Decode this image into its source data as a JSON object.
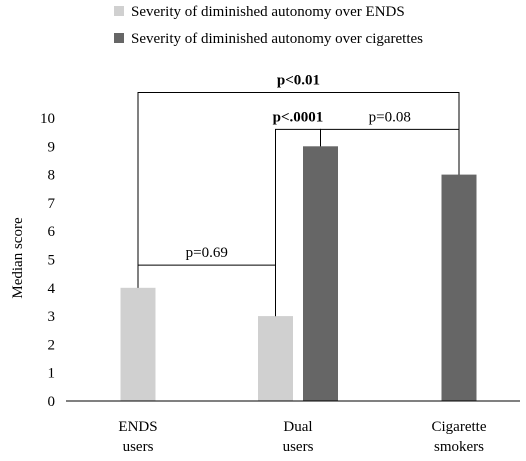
{
  "chart_data": {
    "type": "bar",
    "ylabel": "Median score",
    "ylim": [
      0,
      10
    ],
    "yticks": [
      "0",
      "1",
      "2",
      "3",
      "4",
      "5",
      "6",
      "7",
      "8",
      "9",
      "10"
    ],
    "categories": [
      {
        "line1": "ENDS",
        "line2": "users"
      },
      {
        "line1": "Dual",
        "line2": "users"
      },
      {
        "line1": "Cigarette",
        "line2": "smokers"
      }
    ],
    "series": [
      {
        "name": "Severity of diminished autonomy over ENDS",
        "color": "#d0d0d0",
        "values": [
          4,
          3,
          null
        ]
      },
      {
        "name": "Severity of diminished autonomy over cigarettes",
        "color": "#666666",
        "values": [
          null,
          9,
          8
        ]
      }
    ],
    "legend_position": "top",
    "grid": false,
    "annotations": [
      {
        "label": "p=0.69",
        "bold": false,
        "from": {
          "category": 0,
          "series": 0
        },
        "to": {
          "category": 1,
          "series": 0
        },
        "bracket_top": 4.8
      },
      {
        "label": "p<.0001",
        "bold": true,
        "from": {
          "category": 1,
          "series": 0
        },
        "to": {
          "category": 1,
          "series": 1
        },
        "bracket_top": 9.6
      },
      {
        "label": "p=0.08",
        "bold": false,
        "from": {
          "category": 1,
          "series": 1
        },
        "to": {
          "category": 2,
          "series": 1
        },
        "bracket_top": 9.6
      },
      {
        "label": "p<0.01",
        "bold": true,
        "from": {
          "category": 0,
          "series": 0
        },
        "to": {
          "category": 2,
          "series": 1
        },
        "bracket_top": 10.9
      }
    ]
  }
}
